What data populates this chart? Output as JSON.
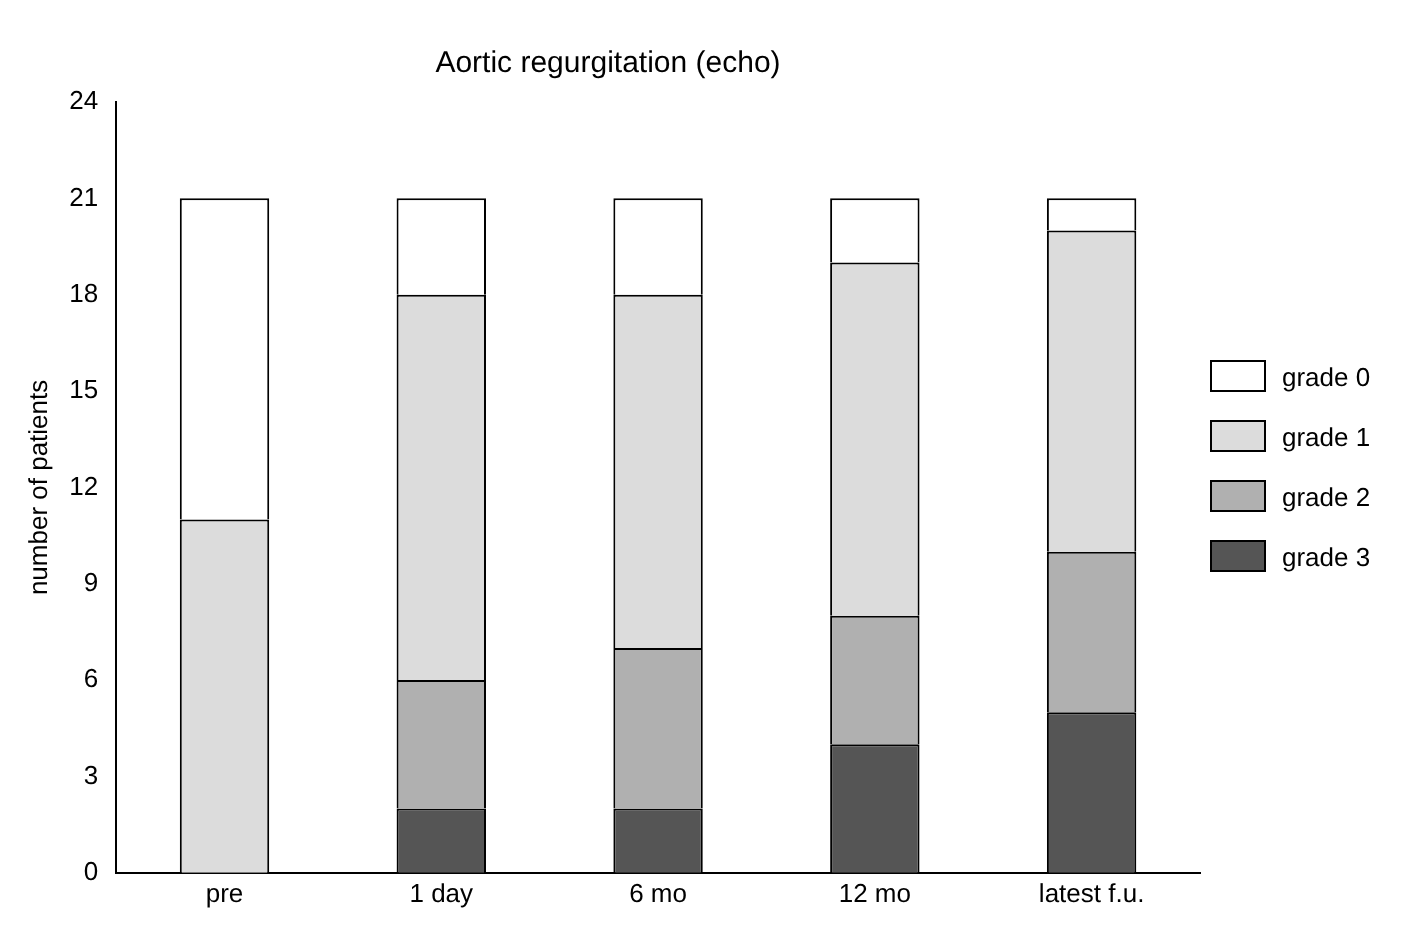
{
  "chart_data": {
    "type": "bar",
    "title": "Aortic regurgitation (echo)",
    "ylabel": "number of patients",
    "categories": [
      "pre",
      "1 day",
      "6 mo",
      "12 mo",
      "latest f.u."
    ],
    "stacked": true,
    "ylim": [
      0,
      24
    ],
    "yticks": [
      0,
      3,
      6,
      9,
      12,
      15,
      18,
      21,
      24
    ],
    "grid": false,
    "legend": "right",
    "series": [
      {
        "name": "grade 3",
        "color": "#555555",
        "values": [
          0,
          2,
          2,
          4,
          5
        ]
      },
      {
        "name": "grade 2",
        "color": "#b0b0b0",
        "values": [
          0,
          4,
          5,
          4,
          5
        ]
      },
      {
        "name": "grade 1",
        "color": "#dcdcdc",
        "values": [
          11,
          12,
          11,
          11,
          10
        ]
      },
      {
        "name": "grade 0",
        "color": "#ffffff",
        "values": [
          10,
          3,
          3,
          2,
          1
        ]
      }
    ]
  }
}
